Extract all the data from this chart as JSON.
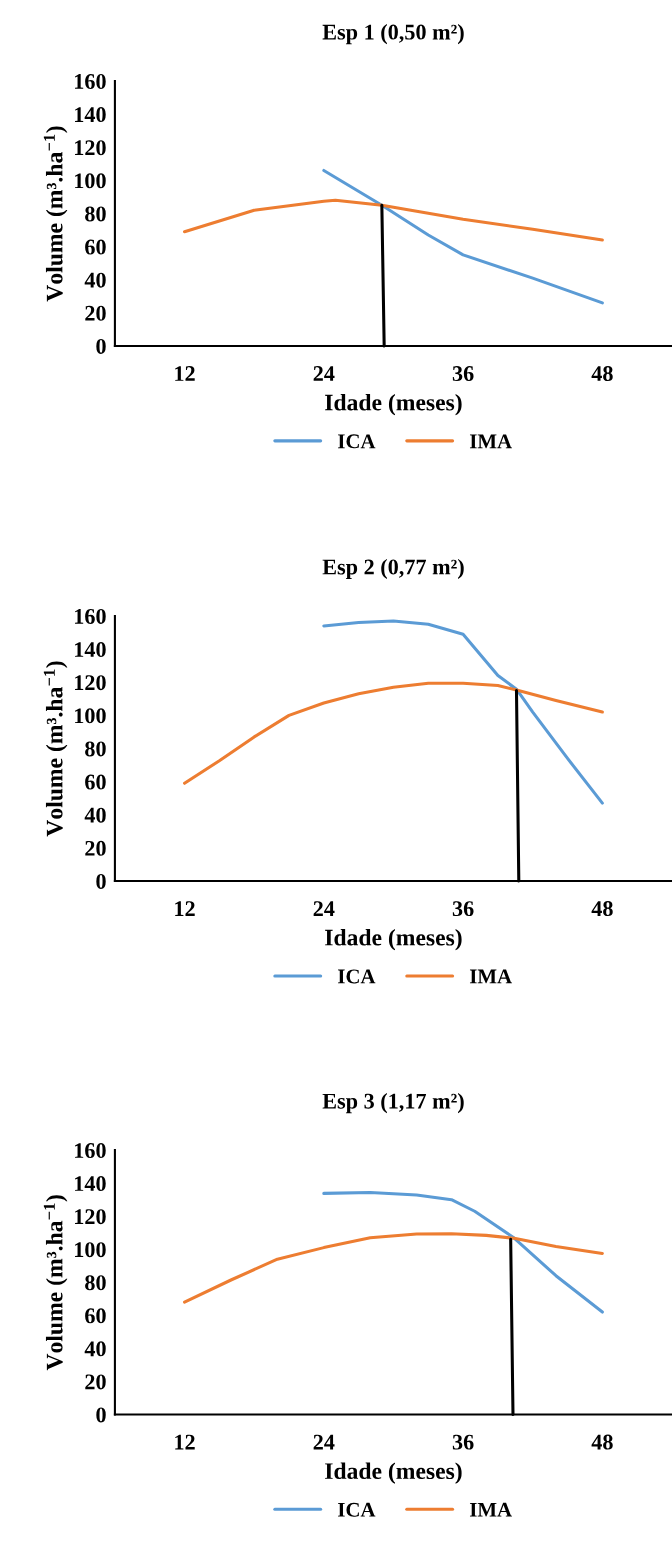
{
  "chart_data": [
    {
      "type": "line",
      "title": "Esp 1 (0,50 m²)",
      "xlabel": "Idade (meses)",
      "ylabel": "Volume (m³.ha$^{−1}$)",
      "xlim": [
        6,
        54
      ],
      "xticks": [
        12,
        24,
        36,
        48
      ],
      "ylim": [
        0,
        160
      ],
      "yticks": [
        0,
        20,
        40,
        60,
        80,
        100,
        120,
        140,
        160
      ],
      "grid": false,
      "legend": "bottom",
      "marker": "none",
      "line_style": "solid",
      "series": [
        {
          "name": "ICA",
          "color": "#5b9bd5",
          "x": [
            24,
            29,
            33,
            36,
            42,
            48
          ],
          "values": [
            106,
            85,
            67,
            55,
            41,
            26
          ]
        },
        {
          "name": "IMA",
          "color": "#ed7d31",
          "x": [
            12,
            18,
            24,
            25,
            29,
            36,
            42,
            48
          ],
          "values": [
            69,
            82,
            87.4,
            88,
            85,
            76.5,
            70.5,
            64
          ]
        },
        {
          "color": "#000000",
          "x": [
            29.2,
            29.0
          ],
          "values": [
            0,
            85
          ]
        }
      ]
    },
    {
      "type": "line",
      "title": "Esp 2 (0,77 m²)",
      "xlabel": "Idade (meses)",
      "ylabel": "Volume (m³.ha$^{−1}$)",
      "xlim": [
        6,
        54
      ],
      "xticks": [
        12,
        24,
        36,
        48
      ],
      "ylim": [
        0,
        160
      ],
      "yticks": [
        0,
        20,
        40,
        60,
        80,
        100,
        120,
        140,
        160
      ],
      "grid": false,
      "legend": "bottom",
      "marker": "none",
      "line_style": "solid",
      "series": [
        {
          "name": "ICA",
          "color": "#5b9bd5",
          "x": [
            24,
            27,
            30,
            33,
            36,
            39,
            40.6,
            42,
            45,
            48
          ],
          "values": [
            154,
            156,
            157,
            155,
            149,
            124,
            115.8,
            102,
            74,
            47
          ]
        },
        {
          "name": "IMA",
          "color": "#ed7d31",
          "x": [
            12,
            15,
            18,
            21,
            24,
            27,
            30,
            33,
            36,
            39,
            40.6,
            44,
            48
          ],
          "values": [
            59,
            72.6,
            87,
            100,
            107.5,
            113,
            117,
            119.4,
            119.4,
            118,
            115.3,
            109,
            102
          ]
        },
        {
          "color": "#000000",
          "x": [
            40.8,
            40.6
          ],
          "values": [
            0,
            115
          ]
        }
      ]
    },
    {
      "type": "line",
      "title": "Esp 3 (1,17 m²)",
      "xlabel": "Idade (meses)",
      "ylabel": "Volume (m³.ha$^{−1}$)",
      "xlim": [
        6,
        54
      ],
      "xticks": [
        12,
        24,
        36,
        48
      ],
      "ylim": [
        0,
        160
      ],
      "yticks": [
        0,
        20,
        40,
        60,
        80,
        100,
        120,
        140,
        160
      ],
      "grid": false,
      "legend": "bottom",
      "marker": "none",
      "line_style": "solid",
      "series": [
        {
          "name": "ICA",
          "color": "#5b9bd5",
          "x": [
            24,
            28,
            32,
            35,
            37,
            40.4,
            44,
            48
          ],
          "values": [
            133.8,
            134.3,
            132.8,
            130,
            123,
            106.8,
            84,
            62
          ]
        },
        {
          "name": "IMA",
          "color": "#ed7d31",
          "x": [
            12,
            16,
            20,
            24,
            28,
            32,
            35,
            38,
            40.4,
            44,
            48
          ],
          "values": [
            68,
            81.4,
            94,
            101,
            107,
            109.2,
            109.4,
            108.4,
            106.6,
            101.7,
            97.5
          ]
        },
        {
          "color": "#000000",
          "x": [
            40.3,
            40.1
          ],
          "values": [
            0,
            106
          ]
        }
      ]
    }
  ]
}
